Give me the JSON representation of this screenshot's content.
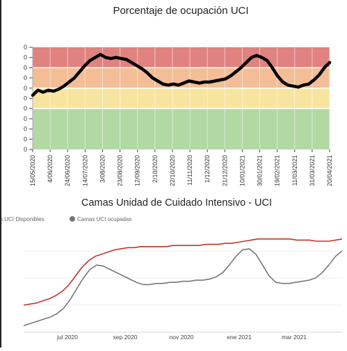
{
  "chart_data": [
    {
      "type": "line",
      "title": "Porcentaje de ocupación UCI",
      "ytick_labels": [
        "0",
        "0",
        "0",
        "0",
        "0",
        "0",
        "0",
        "0",
        "0",
        "0",
        "0"
      ],
      "x_tick_labels": [
        "15/05/2020",
        "4/06/2020",
        "24/06/2020",
        "14/07/2020",
        "3/08/2020",
        "23/08/2020",
        "12/09/2020",
        "2/10/2020",
        "22/10/2020",
        "11/11/2020",
        "1/12/2020",
        "21/12/2020",
        "10/01/2021",
        "30/01/2021",
        "19/02/2021",
        "11/03/2021",
        "31/03/2021",
        "20/04/2021"
      ],
      "bands": [
        {
          "from": 0,
          "to": 4,
          "color": "#b2d8a4"
        },
        {
          "from": 4,
          "to": 6,
          "color": "#f7e49f"
        },
        {
          "from": 6,
          "to": 8,
          "color": "#f3bd96"
        },
        {
          "from": 8,
          "to": 10,
          "color": "#e08380"
        }
      ],
      "ylim": [
        0,
        10
      ],
      "series": [
        {
          "color": "#000000",
          "values": [
            5.3,
            5.8,
            5.6,
            5.8,
            5.7,
            5.9,
            6.2,
            6.6,
            7.0,
            7.6,
            8.2,
            8.7,
            9.0,
            9.3,
            9.0,
            8.9,
            9.0,
            8.9,
            8.8,
            8.5,
            8.2,
            7.9,
            7.5,
            7.0,
            6.7,
            6.4,
            6.3,
            6.4,
            6.3,
            6.5,
            6.7,
            6.6,
            6.5,
            6.6,
            6.6,
            6.7,
            6.8,
            6.9,
            7.2,
            7.6,
            8.0,
            8.5,
            9.0,
            9.2,
            9.0,
            8.7,
            8.0,
            7.2,
            6.6,
            6.3,
            6.2,
            6.1,
            6.3,
            6.4,
            6.8,
            7.3,
            8.0,
            8.5
          ]
        }
      ]
    },
    {
      "type": "line",
      "title": "Camas Unidad de Cuidado Intensivo - UCI",
      "legend": [
        "s UCI Disponibles",
        "Camas UCI ocupadas"
      ],
      "legend_position": "top-left",
      "x_tick_labels": [
        "jul 2020",
        "sep 2020",
        "nov 2020",
        "ene 2021",
        "mar 2021"
      ],
      "ylim": [
        0,
        100
      ],
      "series": [
        {
          "name": "s UCI Disponibles",
          "color": "#c0352b",
          "values": [
            25,
            26,
            27,
            29,
            31,
            34,
            38,
            44,
            52,
            60,
            66,
            70,
            72,
            74,
            76,
            77,
            78,
            78,
            79,
            79,
            79,
            79,
            79,
            80,
            80,
            80,
            80,
            80,
            81,
            81,
            81,
            82,
            82,
            83,
            84,
            85,
            86,
            86,
            86,
            86,
            86,
            86,
            85,
            85,
            85,
            84,
            84,
            84,
            85,
            86
          ]
        },
        {
          "name": "Camas UCI ocupadas",
          "color": "#777777",
          "values": [
            6,
            8,
            10,
            12,
            14,
            17,
            22,
            30,
            40,
            50,
            58,
            62,
            61,
            58,
            55,
            52,
            49,
            46,
            44,
            44,
            45,
            45,
            46,
            46,
            47,
            47,
            48,
            48,
            49,
            51,
            55,
            62,
            70,
            76,
            77,
            72,
            62,
            52,
            46,
            45,
            45,
            46,
            47,
            48,
            50,
            55,
            62,
            70,
            75
          ]
        }
      ]
    }
  ]
}
